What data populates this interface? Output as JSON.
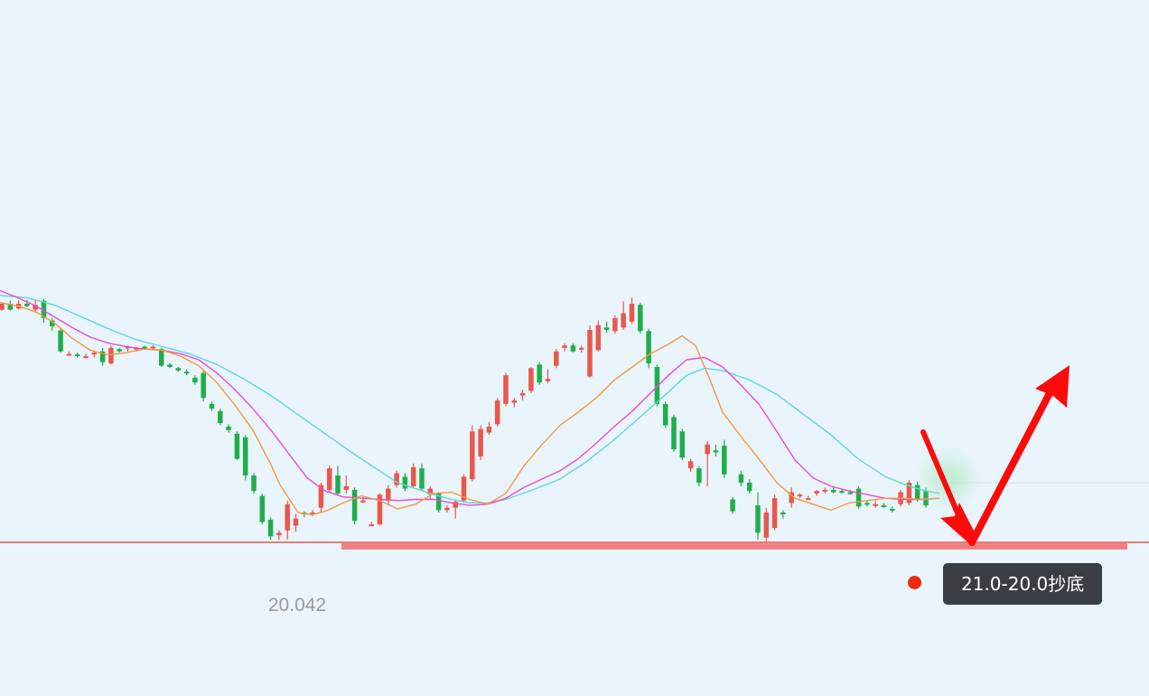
{
  "chart_data": {
    "type": "candlestick",
    "low_label": "20.042",
    "annotation": "21.0-20.0抄底",
    "colors": {
      "background": "#eaf4fc",
      "up": "#e8584b",
      "down": "#1fae4a",
      "ma_short": "#f39a3c",
      "ma_mid": "#e94bd6",
      "ma_long": "#5fd6dc",
      "support": "#e83838",
      "arrow": "#ff0a0a"
    },
    "support_level": 20.0,
    "candles": [
      [
        23.9,
        24.02,
        23.88,
        24.0
      ],
      [
        24.0,
        24.05,
        23.88,
        23.9
      ],
      [
        23.92,
        24.06,
        23.9,
        24.0
      ],
      [
        24.0,
        24.06,
        23.94,
        23.96
      ],
      [
        23.9,
        24.06,
        23.85,
        23.98
      ],
      [
        24.05,
        24.08,
        23.68,
        23.76
      ],
      [
        23.72,
        23.76,
        23.55,
        23.62
      ],
      [
        23.55,
        23.58,
        23.18,
        23.2
      ],
      [
        23.15,
        23.2,
        23.12,
        23.16
      ],
      [
        23.15,
        23.18,
        23.1,
        23.13
      ],
      [
        23.1,
        23.16,
        23.08,
        23.12
      ],
      [
        23.16,
        23.22,
        23.1,
        23.18
      ],
      [
        23.2,
        23.26,
        22.96,
        23.02
      ],
      [
        23.0,
        23.3,
        22.98,
        23.26
      ],
      [
        23.24,
        23.26,
        23.18,
        23.2
      ],
      [
        23.26,
        23.3,
        23.2,
        23.28
      ],
      [
        23.24,
        23.28,
        23.2,
        23.26
      ],
      [
        23.28,
        23.3,
        23.24,
        23.26
      ],
      [
        23.26,
        23.3,
        23.24,
        23.28
      ],
      [
        23.24,
        23.26,
        22.94,
        22.96
      ],
      [
        22.98,
        23.0,
        22.92,
        22.94
      ],
      [
        22.92,
        22.94,
        22.86,
        22.88
      ],
      [
        22.86,
        22.9,
        22.8,
        22.84
      ],
      [
        22.76,
        22.8,
        22.64,
        22.68
      ],
      [
        22.84,
        22.88,
        22.36,
        22.42
      ],
      [
        22.32,
        22.36,
        22.2,
        22.24
      ],
      [
        22.2,
        22.24,
        21.96,
        22.0
      ],
      [
        21.94,
        21.98,
        21.84,
        21.88
      ],
      [
        21.82,
        21.86,
        21.38,
        21.4
      ],
      [
        21.76,
        21.8,
        21.04,
        21.12
      ],
      [
        21.12,
        21.16,
        20.82,
        20.86
      ],
      [
        20.78,
        20.82,
        20.3,
        20.34
      ],
      [
        20.38,
        20.42,
        20.04,
        20.1
      ],
      [
        20.12,
        20.2,
        20.04,
        20.16
      ],
      [
        20.2,
        20.7,
        20.05,
        20.64
      ],
      [
        20.28,
        20.48,
        20.18,
        20.4
      ],
      [
        20.5,
        20.52,
        20.42,
        20.48
      ],
      [
        20.48,
        20.54,
        20.44,
        20.5
      ],
      [
        20.58,
        21.0,
        20.5,
        20.96
      ],
      [
        20.88,
        21.28,
        20.84,
        21.24
      ],
      [
        21.12,
        21.28,
        20.78,
        20.82
      ],
      [
        20.88,
        21.12,
        20.82,
        20.94
      ],
      [
        20.88,
        20.92,
        20.3,
        20.36
      ],
      [
        20.7,
        20.76,
        20.66,
        20.7
      ],
      [
        20.3,
        20.34,
        20.28,
        20.3
      ],
      [
        20.3,
        20.82,
        20.28,
        20.8
      ],
      [
        20.7,
        20.96,
        20.62,
        20.9
      ],
      [
        20.96,
        21.2,
        20.92,
        21.16
      ],
      [
        21.1,
        21.16,
        20.86,
        20.9
      ],
      [
        20.94,
        21.32,
        20.9,
        21.26
      ],
      [
        21.24,
        21.32,
        20.86,
        20.9
      ],
      [
        20.8,
        20.94,
        20.72,
        20.9
      ],
      [
        20.82,
        20.84,
        20.5,
        20.54
      ],
      [
        20.54,
        20.62,
        20.5,
        20.58
      ],
      [
        20.58,
        20.7,
        20.4,
        20.68
      ],
      [
        20.7,
        21.14,
        20.66,
        21.1
      ],
      [
        21.06,
        21.96,
        21.02,
        21.86
      ],
      [
        21.44,
        21.96,
        21.38,
        21.9
      ],
      [
        21.84,
        22.02,
        21.8,
        21.94
      ],
      [
        21.98,
        22.42,
        21.94,
        22.38
      ],
      [
        22.32,
        22.84,
        22.28,
        22.8
      ],
      [
        22.34,
        22.42,
        22.26,
        22.38
      ],
      [
        22.46,
        22.56,
        22.38,
        22.5
      ],
      [
        22.54,
        22.94,
        22.5,
        22.92
      ],
      [
        22.98,
        23.02,
        22.64,
        22.68
      ],
      [
        22.7,
        22.9,
        22.66,
        22.74
      ],
      [
        22.96,
        23.24,
        22.92,
        23.2
      ],
      [
        23.26,
        23.34,
        23.2,
        23.3
      ],
      [
        23.3,
        23.34,
        23.18,
        23.2
      ],
      [
        23.24,
        23.3,
        23.18,
        23.26
      ],
      [
        22.78,
        23.64,
        22.76,
        23.56
      ],
      [
        23.22,
        23.72,
        23.2,
        23.64
      ],
      [
        23.6,
        23.7,
        23.52,
        23.56
      ],
      [
        23.54,
        23.8,
        23.5,
        23.76
      ],
      [
        23.6,
        24.04,
        23.56,
        23.84
      ],
      [
        23.7,
        24.1,
        23.66,
        24.0
      ],
      [
        23.98,
        24.02,
        23.5,
        23.54
      ],
      [
        23.54,
        23.58,
        22.92,
        23.0
      ],
      [
        22.94,
        22.98,
        22.28,
        22.32
      ],
      [
        22.32,
        22.36,
        21.92,
        21.96
      ],
      [
        22.1,
        22.14,
        21.52,
        21.56
      ],
      [
        21.86,
        21.9,
        21.38,
        21.42
      ],
      [
        21.24,
        21.4,
        21.18,
        21.36
      ],
      [
        21.24,
        21.28,
        20.94,
        21.0
      ],
      [
        21.48,
        21.7,
        20.94,
        21.64
      ],
      [
        21.54,
        21.64,
        21.44,
        21.52
      ],
      [
        21.62,
        21.72,
        21.08,
        21.14
      ],
      [
        20.72,
        20.76,
        20.48,
        20.52
      ],
      [
        21.14,
        21.2,
        20.94,
        21.0
      ],
      [
        21.0,
        21.06,
        20.82,
        20.86
      ],
      [
        20.62,
        20.84,
        20.04,
        20.16
      ],
      [
        20.08,
        20.58,
        20.0,
        20.5
      ],
      [
        20.24,
        20.8,
        20.2,
        20.74
      ],
      [
        20.5,
        20.54,
        20.4,
        20.48
      ],
      [
        20.66,
        20.92,
        20.58,
        20.84
      ],
      [
        20.78,
        20.82,
        20.74,
        20.8
      ],
      [
        20.74,
        20.78,
        20.72,
        20.74
      ],
      [
        20.82,
        20.88,
        20.78,
        20.86
      ],
      [
        20.86,
        20.92,
        20.82,
        20.88
      ],
      [
        20.88,
        20.92,
        20.82,
        20.84
      ],
      [
        20.86,
        20.9,
        20.82,
        20.84
      ],
      [
        20.84,
        20.88,
        20.8,
        20.82
      ],
      [
        20.9,
        20.94,
        20.56,
        20.6
      ],
      [
        20.66,
        20.7,
        20.6,
        20.64
      ],
      [
        20.62,
        20.7,
        20.58,
        20.64
      ],
      [
        20.62,
        20.66,
        20.58,
        20.6
      ],
      [
        20.56,
        20.6,
        20.5,
        20.54
      ],
      [
        20.64,
        20.88,
        20.6,
        20.84
      ],
      [
        20.66,
        21.04,
        20.62,
        21.0
      ],
      [
        20.96,
        21.02,
        20.68,
        20.72
      ],
      [
        20.86,
        20.92,
        20.58,
        20.62
      ]
    ],
    "ma_short": [
      [
        0,
        24.02
      ],
      [
        20,
        23.96
      ],
      [
        40,
        23.86
      ],
      [
        60,
        23.68
      ],
      [
        80,
        23.42
      ],
      [
        100,
        23.22
      ],
      [
        120,
        23.14
      ],
      [
        140,
        23.18
      ],
      [
        160,
        23.24
      ],
      [
        180,
        23.22
      ],
      [
        200,
        23.12
      ],
      [
        220,
        22.96
      ],
      [
        240,
        22.68
      ],
      [
        260,
        22.3
      ],
      [
        280,
        21.88
      ],
      [
        300,
        21.3
      ],
      [
        310,
        20.96
      ],
      [
        330,
        20.5
      ],
      [
        345,
        20.46
      ],
      [
        360,
        20.52
      ],
      [
        380,
        20.66
      ],
      [
        400,
        20.78
      ],
      [
        420,
        20.7
      ],
      [
        440,
        20.56
      ],
      [
        460,
        20.64
      ],
      [
        480,
        20.82
      ],
      [
        500,
        20.84
      ],
      [
        520,
        20.72
      ],
      [
        540,
        20.64
      ],
      [
        560,
        20.82
      ],
      [
        580,
        21.28
      ],
      [
        600,
        21.64
      ],
      [
        620,
        21.96
      ],
      [
        640,
        22.18
      ],
      [
        660,
        22.42
      ],
      [
        680,
        22.72
      ],
      [
        700,
        22.94
      ],
      [
        720,
        23.16
      ],
      [
        740,
        23.32
      ],
      [
        755,
        23.46
      ],
      [
        770,
        23.3
      ],
      [
        785,
        22.76
      ],
      [
        800,
        22.18
      ],
      [
        820,
        21.78
      ],
      [
        840,
        21.4
      ],
      [
        860,
        21.0
      ],
      [
        880,
        20.74
      ],
      [
        900,
        20.64
      ],
      [
        920,
        20.54
      ],
      [
        940,
        20.66
      ],
      [
        960,
        20.7
      ],
      [
        980,
        20.74
      ],
      [
        1000,
        20.74
      ],
      [
        1020,
        20.72
      ],
      [
        1040,
        20.74
      ]
    ],
    "ma_mid": [
      [
        0,
        24.22
      ],
      [
        20,
        24.1
      ],
      [
        40,
        23.96
      ],
      [
        60,
        23.78
      ],
      [
        80,
        23.6
      ],
      [
        100,
        23.44
      ],
      [
        120,
        23.34
      ],
      [
        140,
        23.28
      ],
      [
        160,
        23.24
      ],
      [
        180,
        23.22
      ],
      [
        200,
        23.16
      ],
      [
        220,
        23.06
      ],
      [
        240,
        22.84
      ],
      [
        260,
        22.56
      ],
      [
        280,
        22.24
      ],
      [
        300,
        21.88
      ],
      [
        320,
        21.48
      ],
      [
        340,
        21.08
      ],
      [
        360,
        20.86
      ],
      [
        380,
        20.76
      ],
      [
        400,
        20.74
      ],
      [
        420,
        20.72
      ],
      [
        440,
        20.7
      ],
      [
        460,
        20.72
      ],
      [
        480,
        20.72
      ],
      [
        500,
        20.66
      ],
      [
        520,
        20.62
      ],
      [
        540,
        20.64
      ],
      [
        560,
        20.74
      ],
      [
        580,
        20.92
      ],
      [
        600,
        21.06
      ],
      [
        620,
        21.2
      ],
      [
        640,
        21.4
      ],
      [
        660,
        21.66
      ],
      [
        680,
        21.94
      ],
      [
        700,
        22.2
      ],
      [
        720,
        22.5
      ],
      [
        740,
        22.8
      ],
      [
        760,
        23.06
      ],
      [
        780,
        23.1
      ],
      [
        800,
        22.94
      ],
      [
        820,
        22.64
      ],
      [
        840,
        22.32
      ],
      [
        860,
        21.86
      ],
      [
        880,
        21.38
      ],
      [
        900,
        21.08
      ],
      [
        920,
        20.94
      ],
      [
        940,
        20.86
      ],
      [
        960,
        20.8
      ],
      [
        980,
        20.74
      ],
      [
        1000,
        20.72
      ],
      [
        1020,
        20.72
      ],
      [
        1040,
        20.74
      ]
    ],
    "ma_long": [
      [
        0,
        24.14
      ],
      [
        30,
        24.1
      ],
      [
        60,
        23.98
      ],
      [
        90,
        23.78
      ],
      [
        120,
        23.58
      ],
      [
        150,
        23.4
      ],
      [
        180,
        23.28
      ],
      [
        210,
        23.16
      ],
      [
        240,
        22.98
      ],
      [
        270,
        22.74
      ],
      [
        300,
        22.46
      ],
      [
        330,
        22.14
      ],
      [
        360,
        21.82
      ],
      [
        390,
        21.5
      ],
      [
        420,
        21.2
      ],
      [
        440,
        21.0
      ],
      [
        460,
        20.9
      ],
      [
        480,
        20.8
      ],
      [
        500,
        20.72
      ],
      [
        520,
        20.66
      ],
      [
        540,
        20.66
      ],
      [
        560,
        20.72
      ],
      [
        590,
        20.88
      ],
      [
        620,
        21.06
      ],
      [
        650,
        21.36
      ],
      [
        680,
        21.72
      ],
      [
        710,
        22.12
      ],
      [
        740,
        22.52
      ],
      [
        760,
        22.8
      ],
      [
        780,
        22.92
      ],
      [
        800,
        22.88
      ],
      [
        830,
        22.72
      ],
      [
        860,
        22.48
      ],
      [
        890,
        22.14
      ],
      [
        920,
        21.8
      ],
      [
        950,
        21.4
      ],
      [
        980,
        21.1
      ],
      [
        1000,
        20.98
      ],
      [
        1020,
        20.88
      ],
      [
        1040,
        20.82
      ]
    ]
  }
}
